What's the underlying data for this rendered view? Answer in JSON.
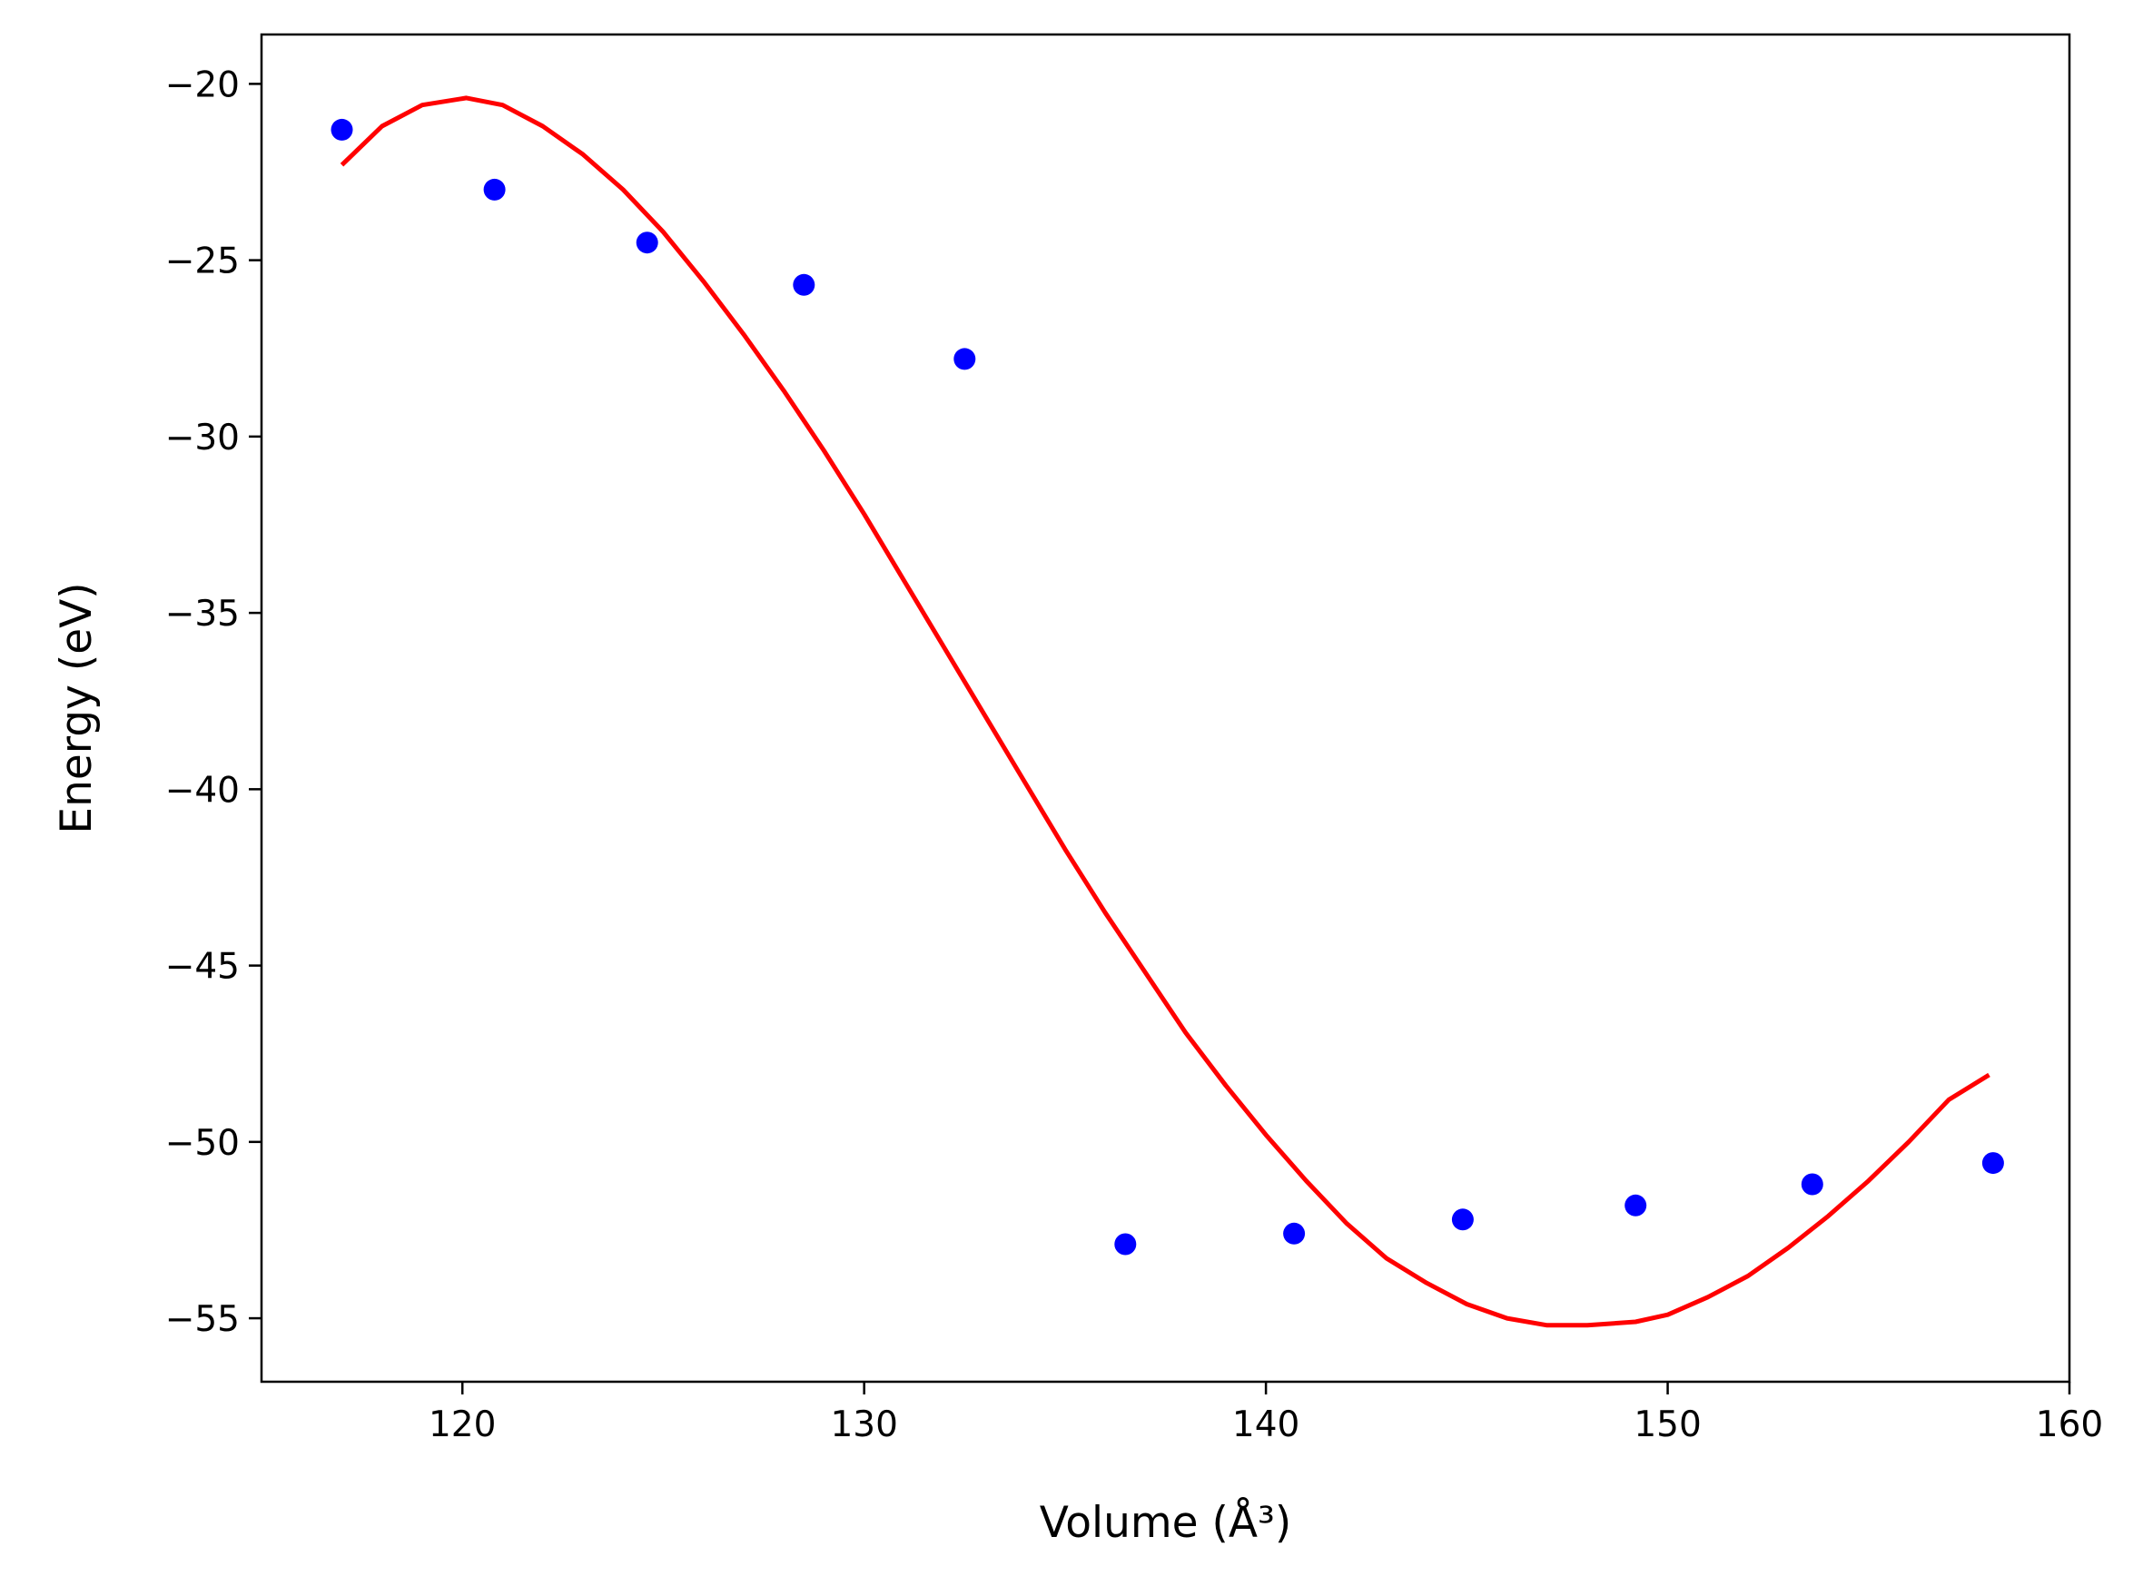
{
  "chart_data": {
    "type": "scatter",
    "title": "",
    "xlabel": "Volume (Å³)",
    "ylabel": "Energy (eV)",
    "xlim": [
      115,
      160
    ],
    "ylim": [
      -56.8,
      -18.6
    ],
    "xticks": [
      120,
      130,
      140,
      150,
      160
    ],
    "yticks": [
      -20,
      -25,
      -30,
      -35,
      -40,
      -45,
      -50,
      -55
    ],
    "grid": false,
    "series": [
      {
        "type": "scatter",
        "color": "#0000ff",
        "x": [
          117.0,
          120.8,
          124.6,
          128.5,
          132.5,
          136.5,
          140.7,
          144.9,
          149.2,
          153.6,
          158.1
        ],
        "y": [
          -21.3,
          -23.0,
          -24.5,
          -25.7,
          -27.8,
          -52.9,
          -52.6,
          -52.2,
          -51.8,
          -51.2,
          -50.6
        ]
      },
      {
        "type": "line",
        "color": "#ff0000",
        "x": [
          117.0,
          118.0,
          119.0,
          120.1,
          121.0,
          122.0,
          123.0,
          124.0,
          125.0,
          126.0,
          127.0,
          128.0,
          129.0,
          130.0,
          131.0,
          132.0,
          133.0,
          134.0,
          135.0,
          136.0,
          137.0,
          138.0,
          139.0,
          140.0,
          141.0,
          142.0,
          143.0,
          144.0,
          145.0,
          146.0,
          147.0,
          148.0,
          149.2,
          150.0,
          151.0,
          152.0,
          153.0,
          154.0,
          155.0,
          156.0,
          157.0,
          158.0
        ],
        "y": [
          -22.3,
          -21.2,
          -20.6,
          -20.4,
          -20.6,
          -21.2,
          -22.0,
          -23.0,
          -24.2,
          -25.6,
          -27.1,
          -28.7,
          -30.4,
          -32.2,
          -34.1,
          -36.0,
          -37.9,
          -39.8,
          -41.7,
          -43.5,
          -45.2,
          -46.9,
          -48.4,
          -49.8,
          -51.1,
          -52.3,
          -53.3,
          -54.0,
          -54.6,
          -55.0,
          -55.2,
          -55.2,
          -55.1,
          -54.9,
          -54.4,
          -53.8,
          -53.0,
          -52.1,
          -51.1,
          -50.0,
          -48.8,
          -48.1
        ]
      }
    ]
  }
}
